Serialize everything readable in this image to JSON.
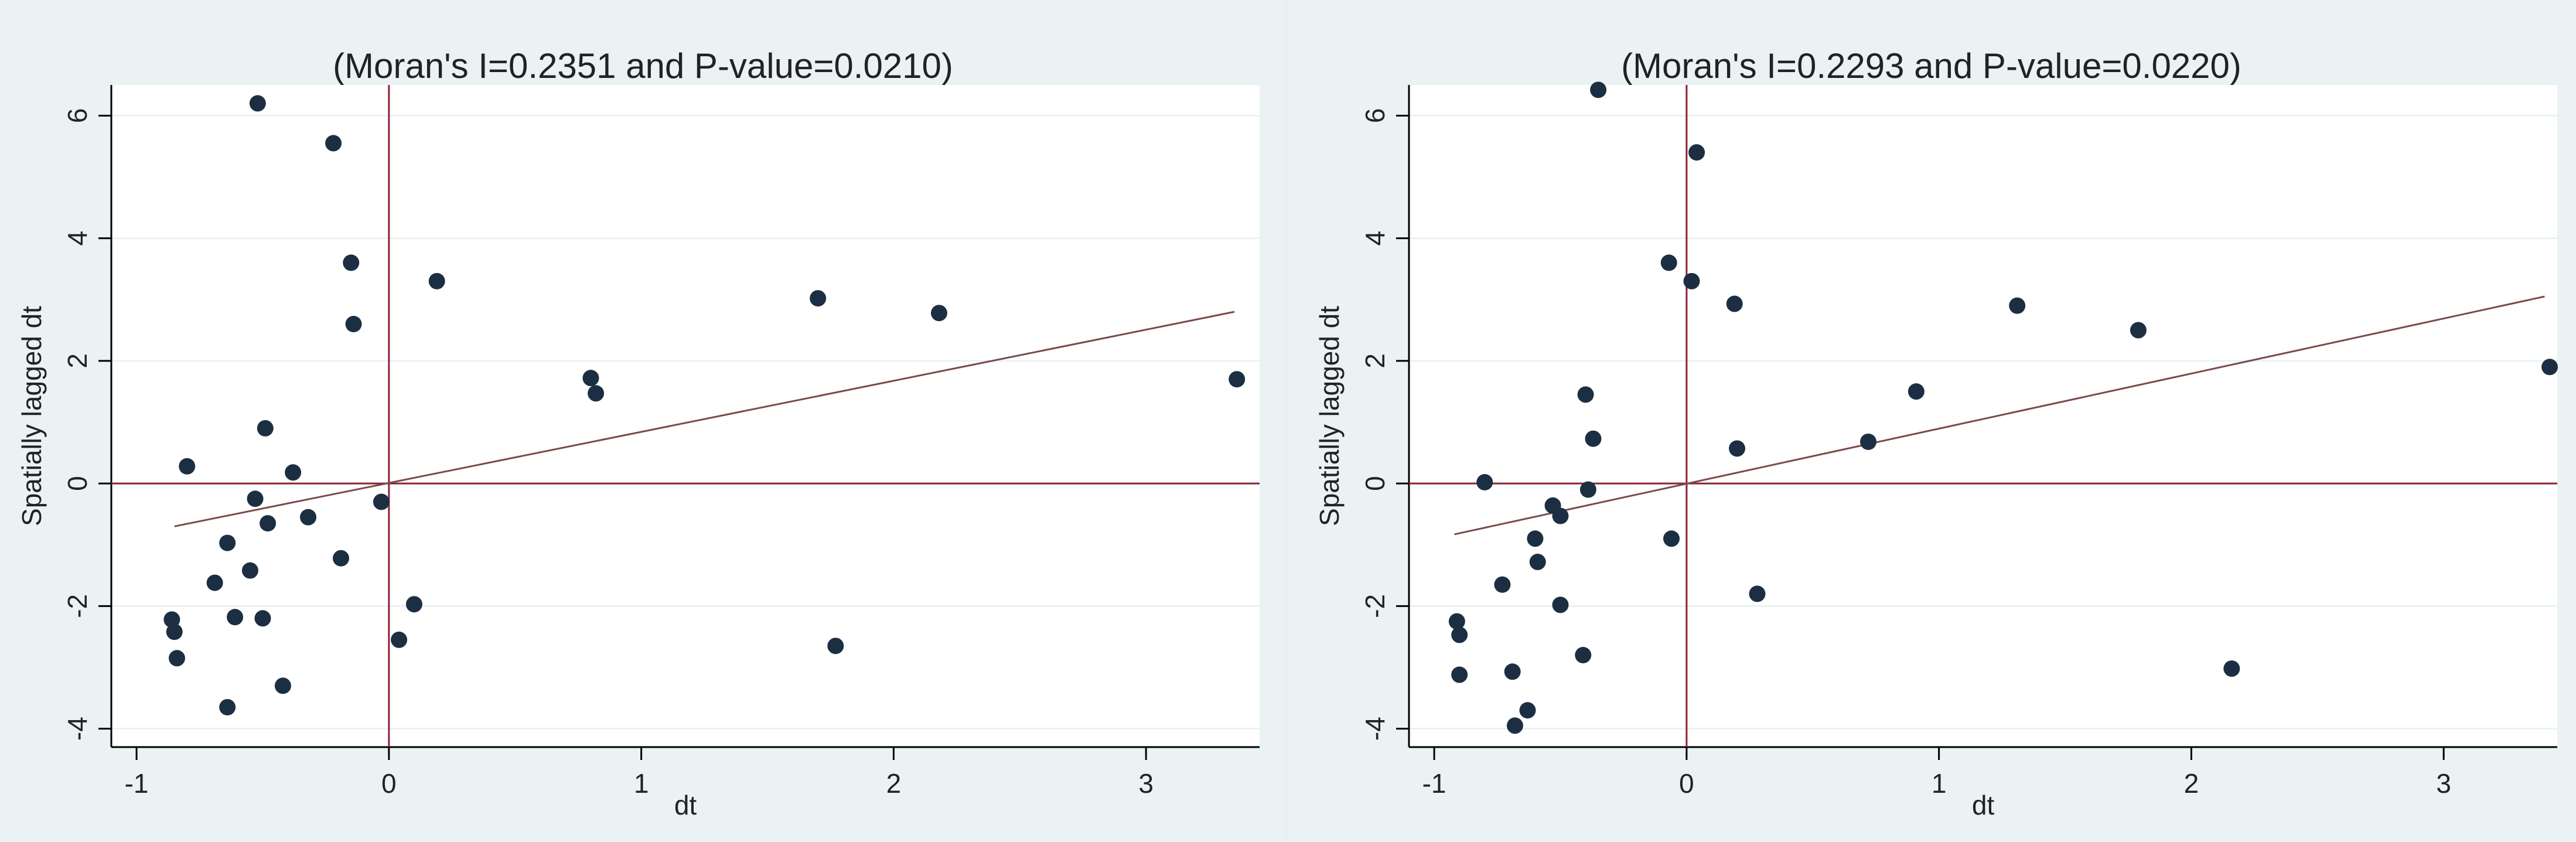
{
  "chart_data": [
    {
      "type": "scatter",
      "title": "(Moran's I=0.2351 and P-value=0.0210)",
      "xlabel": "dt",
      "ylabel": "Spatially lagged dt",
      "xlim": [
        -1.1,
        3.45
      ],
      "ylim": [
        -4.3,
        6.5
      ],
      "xticks": [
        -1,
        0,
        1,
        2,
        3
      ],
      "yticks": [
        -4,
        -2,
        0,
        2,
        4,
        6
      ],
      "ref_lines": {
        "x": 0,
        "y": 0
      },
      "fit_line": {
        "x": [
          -0.85,
          3.35
        ],
        "y": [
          -0.7,
          2.8
        ]
      },
      "points": [
        {
          "x": -0.52,
          "y": 6.2
        },
        {
          "x": -0.22,
          "y": 5.55
        },
        {
          "x": -0.15,
          "y": 3.6
        },
        {
          "x": 0.19,
          "y": 3.3
        },
        {
          "x": -0.14,
          "y": 2.6
        },
        {
          "x": 1.7,
          "y": 3.02
        },
        {
          "x": 2.18,
          "y": 2.78
        },
        {
          "x": 0.8,
          "y": 1.72
        },
        {
          "x": 0.82,
          "y": 1.47
        },
        {
          "x": 3.36,
          "y": 1.7
        },
        {
          "x": -0.49,
          "y": 0.9
        },
        {
          "x": -0.8,
          "y": 0.28
        },
        {
          "x": -0.38,
          "y": 0.18
        },
        {
          "x": -0.53,
          "y": -0.25
        },
        {
          "x": -0.32,
          "y": -0.55
        },
        {
          "x": -0.48,
          "y": -0.65
        },
        {
          "x": -0.03,
          "y": -0.3
        },
        {
          "x": -0.64,
          "y": -0.97
        },
        {
          "x": -0.19,
          "y": -1.22
        },
        {
          "x": -0.69,
          "y": -1.62
        },
        {
          "x": -0.55,
          "y": -1.42
        },
        {
          "x": 0.1,
          "y": -1.97
        },
        {
          "x": -0.86,
          "y": -2.22
        },
        {
          "x": -0.61,
          "y": -2.18
        },
        {
          "x": -0.5,
          "y": -2.2
        },
        {
          "x": -0.85,
          "y": -2.42
        },
        {
          "x": 0.04,
          "y": -2.55
        },
        {
          "x": 1.77,
          "y": -2.65
        },
        {
          "x": -0.84,
          "y": -2.85
        },
        {
          "x": -0.42,
          "y": -3.3
        },
        {
          "x": -0.64,
          "y": -3.65
        }
      ]
    },
    {
      "type": "scatter",
      "title": "(Moran's I=0.2293 and P-value=0.0220)",
      "xlabel": "dt",
      "ylabel": "Spatially lagged dt",
      "xlim": [
        -1.1,
        3.45
      ],
      "ylim": [
        -4.3,
        6.5
      ],
      "xticks": [
        -1,
        0,
        1,
        2,
        3
      ],
      "yticks": [
        -4,
        -2,
        0,
        2,
        4,
        6
      ],
      "ref_lines": {
        "x": 0,
        "y": 0
      },
      "fit_line": {
        "x": [
          -0.92,
          3.4
        ],
        "y": [
          -0.83,
          3.05
        ]
      },
      "points": [
        {
          "x": -0.35,
          "y": 6.42
        },
        {
          "x": 0.04,
          "y": 5.4
        },
        {
          "x": -0.07,
          "y": 3.6
        },
        {
          "x": 0.02,
          "y": 3.3
        },
        {
          "x": 0.19,
          "y": 2.93
        },
        {
          "x": 1.31,
          "y": 2.9
        },
        {
          "x": 1.79,
          "y": 2.5
        },
        {
          "x": 3.42,
          "y": 1.9
        },
        {
          "x": 0.91,
          "y": 1.5
        },
        {
          "x": -0.4,
          "y": 1.45
        },
        {
          "x": -0.37,
          "y": 0.73
        },
        {
          "x": 0.72,
          "y": 0.68
        },
        {
          "x": 0.2,
          "y": 0.57
        },
        {
          "x": -0.8,
          "y": 0.02
        },
        {
          "x": -0.39,
          "y": -0.1
        },
        {
          "x": -0.53,
          "y": -0.36
        },
        {
          "x": -0.5,
          "y": -0.53
        },
        {
          "x": -0.6,
          "y": -0.9
        },
        {
          "x": -0.06,
          "y": -0.9
        },
        {
          "x": -0.59,
          "y": -1.28
        },
        {
          "x": -0.73,
          "y": -1.65
        },
        {
          "x": 0.28,
          "y": -1.8
        },
        {
          "x": -0.5,
          "y": -1.98
        },
        {
          "x": -0.91,
          "y": -2.25
        },
        {
          "x": -0.9,
          "y": -2.47
        },
        {
          "x": -0.41,
          "y": -2.8
        },
        {
          "x": 2.16,
          "y": -3.02
        },
        {
          "x": -0.9,
          "y": -3.12
        },
        {
          "x": -0.69,
          "y": -3.07
        },
        {
          "x": -0.63,
          "y": -3.7
        },
        {
          "x": -0.68,
          "y": -3.95
        }
      ]
    }
  ]
}
